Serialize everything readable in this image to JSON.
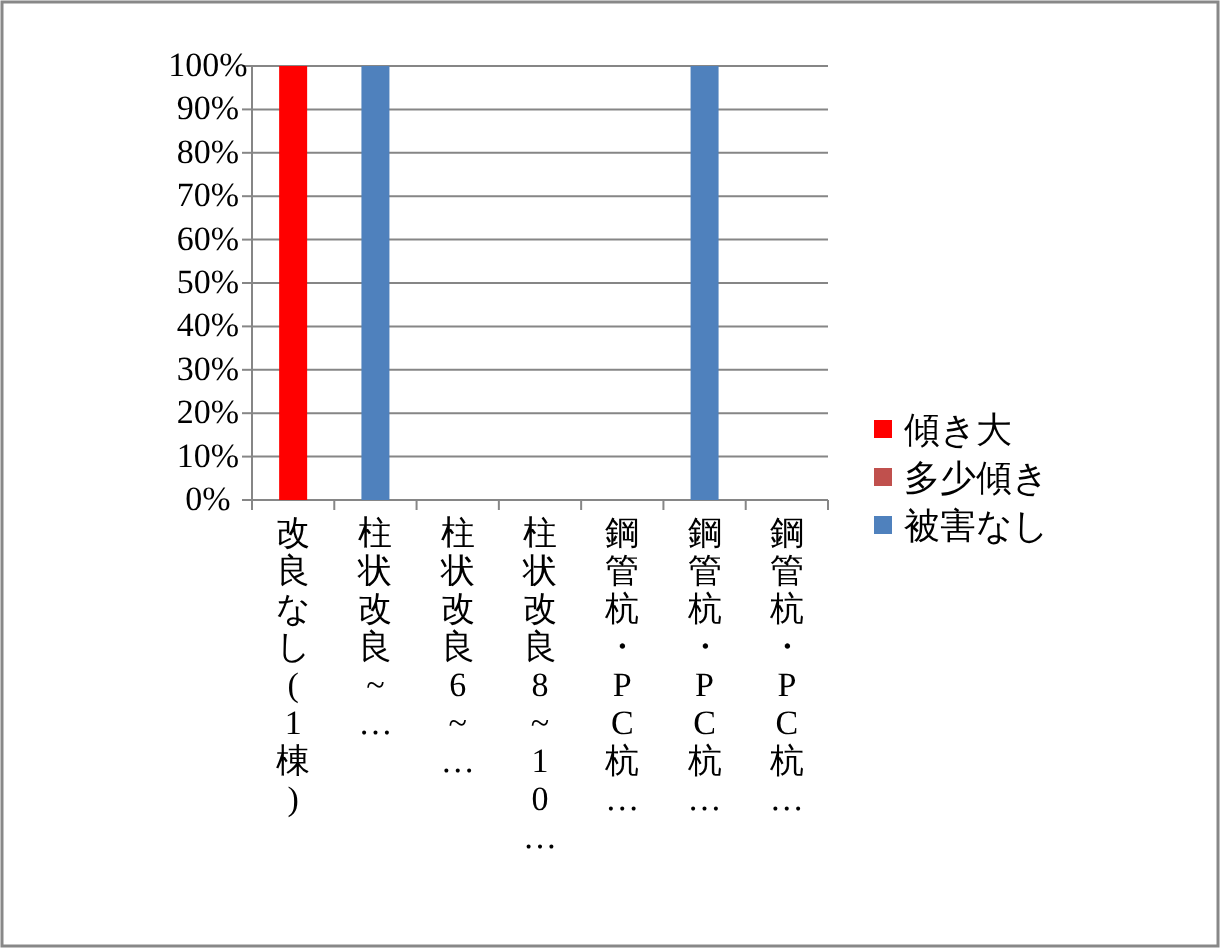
{
  "chart_data": {
    "type": "bar",
    "stacked": true,
    "categories": [
      "改良なし(1棟)",
      "柱状改良~…",
      "柱状改良6~…",
      "柱状改良8~10…",
      "鋼管杭・PC杭…",
      "鋼管杭・PC杭…",
      "鋼管杭・PC杭…"
    ],
    "series": [
      {
        "name": "傾き大",
        "color": "#ff0000",
        "values": [
          100,
          0,
          0,
          0,
          0,
          0,
          0
        ]
      },
      {
        "name": "多少傾き",
        "color": "#c0504d",
        "values": [
          0,
          0,
          0,
          0,
          0,
          0,
          0
        ]
      },
      {
        "name": "被害なし",
        "color": "#4f81bd",
        "values": [
          0,
          100,
          0,
          0,
          0,
          100,
          0
        ]
      }
    ],
    "ylim": [
      0,
      100
    ],
    "yticks": [
      {
        "value": 0,
        "label": "0%"
      },
      {
        "value": 10,
        "label": "10%"
      },
      {
        "value": 20,
        "label": "20%"
      },
      {
        "value": 30,
        "label": "30%"
      },
      {
        "value": 40,
        "label": "40%"
      },
      {
        "value": 50,
        "label": "50%"
      },
      {
        "value": 60,
        "label": "60%"
      },
      {
        "value": 70,
        "label": "70%"
      },
      {
        "value": 80,
        "label": "80%"
      },
      {
        "value": 90,
        "label": "90%"
      },
      {
        "value": 100,
        "label": "100%"
      }
    ],
    "grid": "y",
    "legend": "right"
  }
}
